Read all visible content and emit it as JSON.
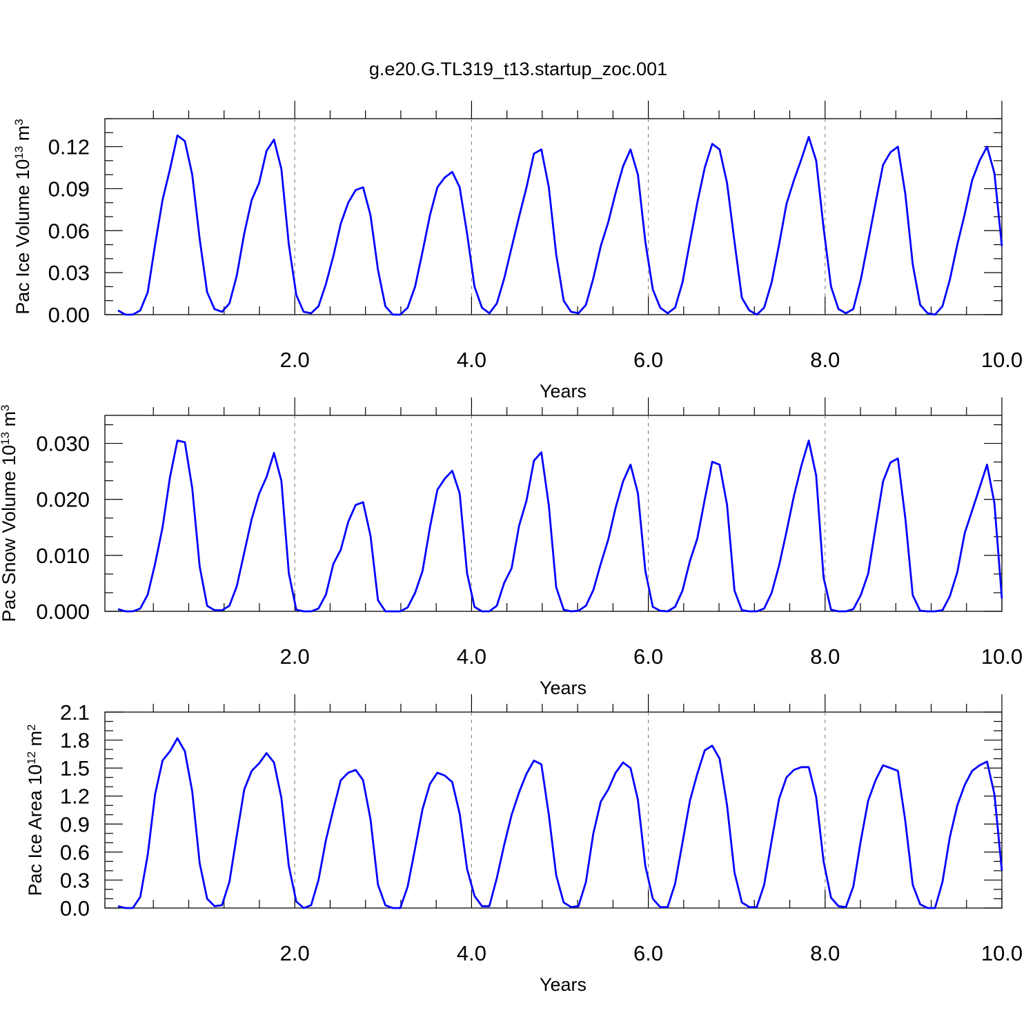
{
  "title": "g.e20.G.TL319_t13.startup_zoc.001",
  "colors": {
    "series": "#0000ff",
    "axis": "#000000",
    "grid": "#888888"
  },
  "chart_data": [
    {
      "type": "line",
      "xlabel": "Years",
      "ylabel": {
        "prefix": "Pac Ice Volume 10",
        "exponent": "13",
        "unit": " m",
        "unit_exponent": "3"
      },
      "xlim": [
        0.0,
        10.0
      ],
      "ylim": [
        0.0,
        0.14
      ],
      "xticks": [
        2.0,
        4.0,
        6.0,
        8.0,
        10.0
      ],
      "xtick_labels": [
        "2.0",
        "4.0",
        "6.0",
        "8.0",
        "10.0"
      ],
      "yticks": [
        0.0,
        0.03,
        0.06,
        0.09,
        0.12
      ],
      "ytick_labels": [
        "0.00",
        "0.03",
        "0.06",
        "0.09",
        "0.12"
      ],
      "grid": "vertical dashed at x-ticks",
      "series": [
        {
          "values": [
            0.003,
            0.0,
            0.0,
            0.003,
            0.016,
            0.05,
            0.082,
            0.104,
            0.128,
            0.124,
            0.1,
            0.054,
            0.016,
            0.004,
            0.002,
            0.008,
            0.028,
            0.058,
            0.082,
            0.094,
            0.117,
            0.125,
            0.104,
            0.05,
            0.014,
            0.002,
            0.001,
            0.006,
            0.022,
            0.042,
            0.065,
            0.08,
            0.089,
            0.091,
            0.071,
            0.032,
            0.006,
            0.0,
            0.0,
            0.005,
            0.02,
            0.045,
            0.071,
            0.091,
            0.098,
            0.102,
            0.091,
            0.058,
            0.02,
            0.005,
            0.001,
            0.008,
            0.026,
            0.048,
            0.07,
            0.091,
            0.115,
            0.118,
            0.091,
            0.043,
            0.01,
            0.002,
            0.001,
            0.007,
            0.026,
            0.049,
            0.066,
            0.087,
            0.106,
            0.118,
            0.1,
            0.052,
            0.018,
            0.005,
            0.001,
            0.005,
            0.023,
            0.052,
            0.08,
            0.105,
            0.122,
            0.118,
            0.094,
            0.052,
            0.012,
            0.003,
            0.0,
            0.005,
            0.023,
            0.05,
            0.079,
            0.096,
            0.111,
            0.127,
            0.11,
            0.062,
            0.02,
            0.004,
            0.001,
            0.004,
            0.025,
            0.052,
            0.08,
            0.107,
            0.116,
            0.12,
            0.086,
            0.036,
            0.007,
            0.001,
            0.0,
            0.006,
            0.025,
            0.05,
            0.072,
            0.096,
            0.11,
            0.12,
            0.101,
            0.049
          ]
        }
      ]
    },
    {
      "type": "line",
      "xlabel": "Years",
      "ylabel": {
        "prefix": "Pac Snow Volume 10",
        "exponent": "13",
        "unit": " m",
        "unit_exponent": "3"
      },
      "xlim": [
        0.0,
        10.0
      ],
      "ylim": [
        0.0,
        0.035
      ],
      "xticks": [
        2.0,
        4.0,
        6.0,
        8.0,
        10.0
      ],
      "xtick_labels": [
        "2.0",
        "4.0",
        "6.0",
        "8.0",
        "10.0"
      ],
      "yticks": [
        0.0,
        0.01,
        0.02,
        0.03
      ],
      "ytick_labels": [
        "0.000",
        "0.010",
        "0.020",
        "0.030"
      ],
      "grid": "vertical dashed at x-ticks",
      "series": [
        {
          "values": [
            0.0004,
            0.0,
            0.0,
            0.0005,
            0.003,
            0.0085,
            0.015,
            0.024,
            0.0305,
            0.0302,
            0.022,
            0.008,
            0.001,
            0.0002,
            0.0002,
            0.001,
            0.0045,
            0.0105,
            0.0165,
            0.021,
            0.024,
            0.0283,
            0.0233,
            0.0068,
            0.0003,
            0.0,
            0.0,
            0.0005,
            0.003,
            0.0085,
            0.011,
            0.016,
            0.019,
            0.0195,
            0.0135,
            0.002,
            0.0,
            0.0,
            0.0,
            0.0007,
            0.0033,
            0.0072,
            0.015,
            0.0217,
            0.0237,
            0.0251,
            0.0211,
            0.0068,
            0.0008,
            0.0,
            0.0,
            0.001,
            0.0051,
            0.0077,
            0.0153,
            0.0198,
            0.0269,
            0.0284,
            0.0189,
            0.0043,
            0.0003,
            0.0,
            0.0001,
            0.001,
            0.0038,
            0.0085,
            0.0128,
            0.0185,
            0.0232,
            0.0262,
            0.0211,
            0.0072,
            0.0008,
            0.0001,
            0.0,
            0.0008,
            0.0037,
            0.009,
            0.013,
            0.02,
            0.0267,
            0.0262,
            0.019,
            0.0037,
            0.0002,
            0.0,
            0.0,
            0.0005,
            0.0033,
            0.0082,
            0.0142,
            0.0206,
            0.026,
            0.0305,
            0.0242,
            0.006,
            0.0003,
            0.0,
            0.0,
            0.0004,
            0.0029,
            0.0067,
            0.015,
            0.0232,
            0.0266,
            0.0273,
            0.0166,
            0.0029,
            0.0001,
            0.0,
            0.0,
            0.0002,
            0.0027,
            0.007,
            0.014,
            0.018,
            0.0221,
            0.0262,
            0.0193,
            0.0023
          ]
        }
      ]
    },
    {
      "type": "line",
      "xlabel": "Years",
      "ylabel": {
        "prefix": "Pac Ice Area 10",
        "exponent": "12",
        "unit": " m",
        "unit_exponent": "2"
      },
      "xlim": [
        0.0,
        10.0
      ],
      "ylim": [
        0.0,
        2.1
      ],
      "xticks": [
        2.0,
        4.0,
        6.0,
        8.0,
        10.0
      ],
      "xtick_labels": [
        "2.0",
        "4.0",
        "6.0",
        "8.0",
        "10.0"
      ],
      "yticks": [
        0.0,
        0.3,
        0.6,
        0.9,
        1.2,
        1.5,
        1.8,
        2.1
      ],
      "ytick_labels": [
        "0.0",
        "0.3",
        "0.6",
        "0.9",
        "1.2",
        "1.5",
        "1.8",
        "2.1"
      ],
      "grid": "vertical dashed at x-ticks",
      "series": [
        {
          "values": [
            0.02,
            0.0,
            0.0,
            0.12,
            0.57,
            1.22,
            1.58,
            1.68,
            1.82,
            1.68,
            1.25,
            0.48,
            0.1,
            0.02,
            0.03,
            0.28,
            0.78,
            1.27,
            1.47,
            1.55,
            1.66,
            1.56,
            1.18,
            0.45,
            0.07,
            0.0,
            0.03,
            0.3,
            0.73,
            1.06,
            1.37,
            1.45,
            1.48,
            1.37,
            0.95,
            0.25,
            0.03,
            0.0,
            0.0,
            0.23,
            0.64,
            1.06,
            1.33,
            1.45,
            1.42,
            1.35,
            1.01,
            0.42,
            0.13,
            0.02,
            0.02,
            0.32,
            0.68,
            1.0,
            1.24,
            1.44,
            1.58,
            1.54,
            1.0,
            0.35,
            0.06,
            0.01,
            0.02,
            0.28,
            0.8,
            1.14,
            1.27,
            1.45,
            1.56,
            1.5,
            1.16,
            0.45,
            0.1,
            0.01,
            0.01,
            0.26,
            0.7,
            1.15,
            1.44,
            1.69,
            1.74,
            1.6,
            1.1,
            0.38,
            0.06,
            0.01,
            0.01,
            0.25,
            0.72,
            1.17,
            1.4,
            1.48,
            1.51,
            1.51,
            1.19,
            0.5,
            0.11,
            0.02,
            0.01,
            0.23,
            0.72,
            1.15,
            1.37,
            1.53,
            1.5,
            1.47,
            0.93,
            0.25,
            0.04,
            0.0,
            0.0,
            0.28,
            0.76,
            1.1,
            1.32,
            1.47,
            1.53,
            1.57,
            1.22,
            0.4
          ]
        }
      ]
    }
  ]
}
